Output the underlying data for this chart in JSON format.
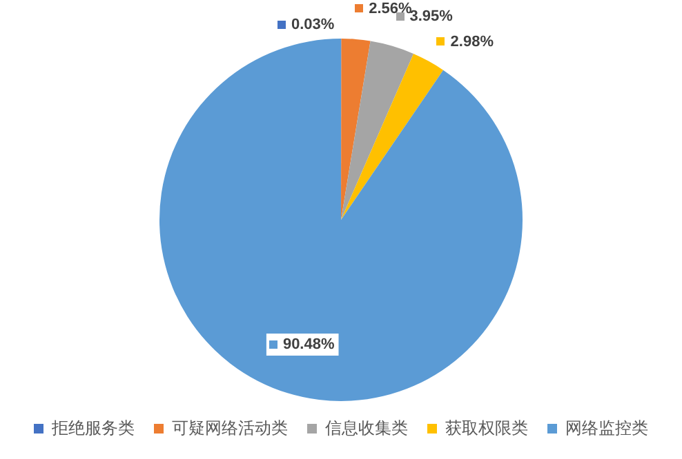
{
  "chart_data": {
    "type": "pie",
    "categories": [
      "拒绝服务类",
      "可疑网络活动类",
      "信息收集类",
      "获取权限类",
      "网络监控类"
    ],
    "values": [
      0.03,
      2.56,
      3.95,
      2.98,
      90.48
    ],
    "colors": [
      "#4472c4",
      "#ed7d31",
      "#a5a5a5",
      "#ffc000",
      "#5b9bd5"
    ],
    "value_labels": [
      "0.03%",
      "2.56%",
      "3.95%",
      "2.98%",
      "90.48%"
    ],
    "legend": "bottom"
  }
}
